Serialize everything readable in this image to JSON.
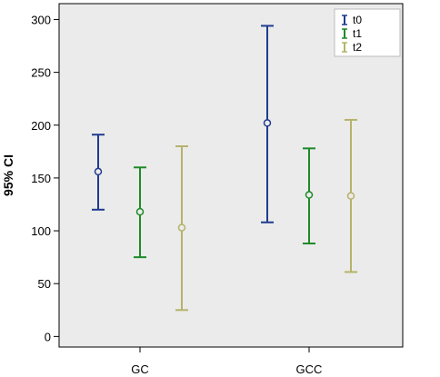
{
  "chart_data": {
    "type": "errorbar",
    "ylabel": "95% CI",
    "xlabel": "",
    "ylim": [
      -10,
      315
    ],
    "yticks": [
      0,
      50,
      100,
      150,
      200,
      250,
      300
    ],
    "categories": [
      "GC",
      "GCC"
    ],
    "legend_position": "top-right",
    "grid": false,
    "series": [
      {
        "name": "t0",
        "color": "#1f3b8f",
        "points": [
          {
            "category": "GC",
            "mean": 156,
            "lower": 120,
            "upper": 191
          },
          {
            "category": "GCC",
            "mean": 202,
            "lower": 108,
            "upper": 294
          }
        ]
      },
      {
        "name": "t1",
        "color": "#1e8a28",
        "points": [
          {
            "category": "GC",
            "mean": 118,
            "lower": 75,
            "upper": 160
          },
          {
            "category": "GCC",
            "mean": 134,
            "lower": 88,
            "upper": 178
          }
        ]
      },
      {
        "name": "t2",
        "color": "#b5b36a",
        "points": [
          {
            "category": "GC",
            "mean": 103,
            "lower": 25,
            "upper": 180
          },
          {
            "category": "GCC",
            "mean": 133,
            "lower": 61,
            "upper": 205
          }
        ]
      }
    ]
  }
}
